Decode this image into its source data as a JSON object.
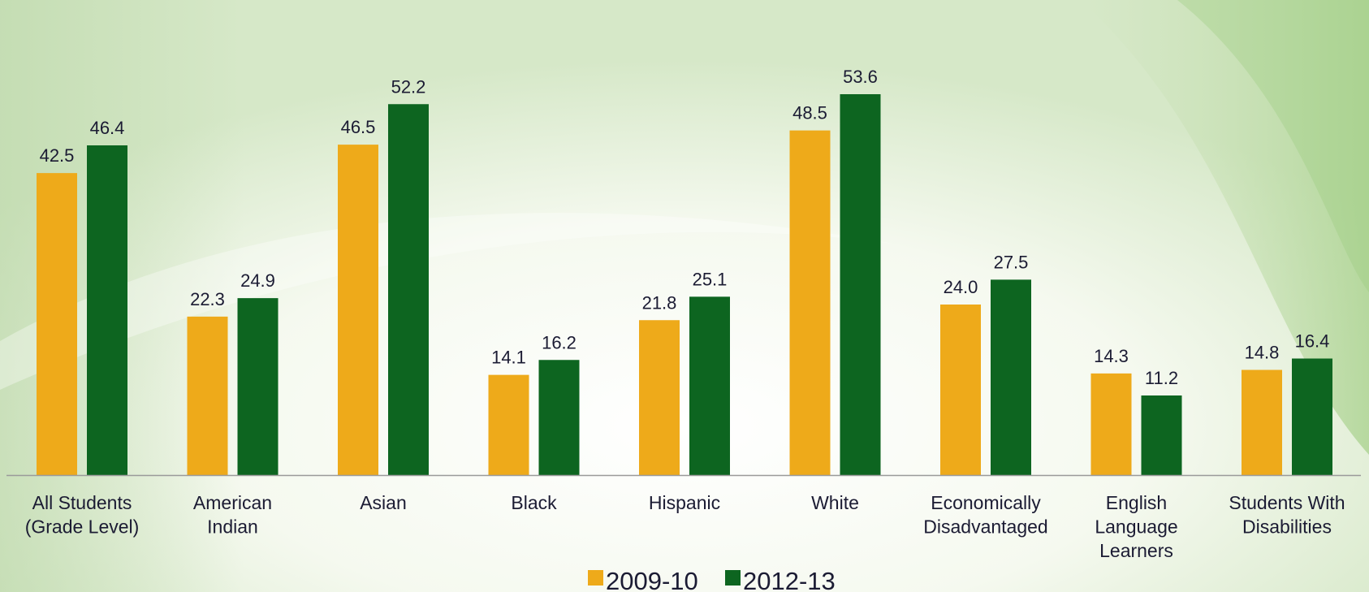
{
  "chart_data": {
    "type": "bar",
    "title": "",
    "xlabel": "",
    "ylabel": "",
    "ylim": [
      0,
      60
    ],
    "grid": false,
    "legend_position": "bottom",
    "categories": [
      [
        "All Students",
        "(Grade Level)"
      ],
      [
        "American",
        "Indian"
      ],
      [
        "Asian"
      ],
      [
        "Black"
      ],
      [
        "Hispanic"
      ],
      [
        "White"
      ],
      [
        "Economically",
        "Disadvantaged"
      ],
      [
        "English",
        "Language",
        "Learners"
      ],
      [
        "Students With",
        "Disabilities"
      ]
    ],
    "series": [
      {
        "name": "2009-10",
        "color": "#eeaa1a",
        "values": [
          42.5,
          22.3,
          46.5,
          14.1,
          21.8,
          48.5,
          24.0,
          14.3,
          14.8
        ],
        "labels": [
          "42.5",
          "22.3",
          "46.5",
          "14.1",
          "21.8",
          "48.5",
          "24.0",
          "14.3",
          "14.8"
        ]
      },
      {
        "name": "2012-13",
        "color": "#0d6520",
        "values": [
          46.4,
          24.9,
          52.2,
          16.2,
          25.1,
          53.6,
          27.5,
          11.2,
          16.4
        ],
        "labels": [
          "46.4",
          "24.9",
          "52.2",
          "16.2",
          "25.1",
          "53.6",
          "27.5",
          "11.2",
          "16.4"
        ]
      }
    ]
  }
}
